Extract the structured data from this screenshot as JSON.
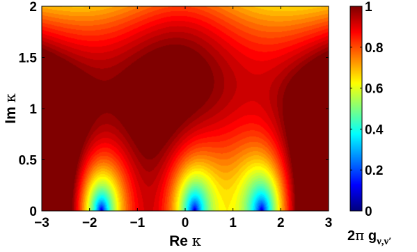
{
  "chart_data": {
    "type": "heatmap",
    "xlabel": {
      "main": "Re ",
      "symbol": "κ"
    },
    "ylabel": {
      "main": "Im ",
      "symbol": "κ"
    },
    "xlim": [
      -3,
      3
    ],
    "ylim": [
      0,
      2
    ],
    "x_ticks": [
      "−3",
      "−2",
      "−1",
      "0",
      "1",
      "2",
      "3"
    ],
    "x_tick_values": [
      -3,
      -2,
      -1,
      0,
      1,
      2,
      3
    ],
    "y_ticks": [
      "0",
      "0.5",
      "1",
      "1.5",
      "2"
    ],
    "y_tick_values": [
      0,
      0.5,
      1,
      1.5,
      2
    ],
    "colorbar": {
      "range": [
        0,
        1
      ],
      "ticks": [
        "0",
        "0.2",
        "0.4",
        "0.6",
        "0.8",
        "1"
      ],
      "tick_values": [
        0,
        0.2,
        0.4,
        0.6,
        0.8,
        1
      ],
      "label": {
        "prefix": "2",
        "pi": "π",
        "g": " g",
        "sub": "ν,ν′"
      },
      "colormap": "jet"
    },
    "features": {
      "zeros_on_real_axis": [
        -1.75,
        0.2,
        1.6
      ],
      "peak": {
        "x": 0.2,
        "y": 1.0,
        "value": 1.0
      }
    }
  }
}
